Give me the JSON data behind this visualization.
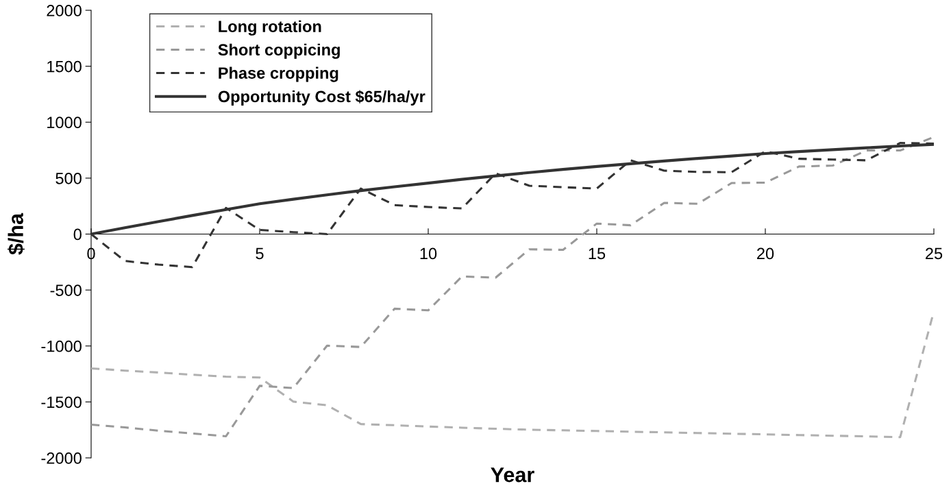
{
  "chart_data": {
    "type": "line",
    "xlabel": "Year",
    "ylabel": "$/ha",
    "x": [
      0,
      1,
      2,
      3,
      4,
      5,
      6,
      7,
      8,
      9,
      10,
      11,
      12,
      13,
      14,
      15,
      16,
      17,
      18,
      19,
      20,
      21,
      22,
      23,
      24,
      25
    ],
    "xlim": [
      0,
      25
    ],
    "xticks": [
      0,
      5,
      10,
      15,
      20,
      25
    ],
    "ylim": [
      -2000,
      2000
    ],
    "yticks": [
      -2000,
      -1500,
      -1000,
      -500,
      0,
      500,
      1000,
      1500,
      2000
    ],
    "grid": false,
    "legend": "top left",
    "marker": "none",
    "series": [
      {
        "name": "Long rotation",
        "color": "#b0b0b0",
        "line_style": "dashed",
        "values": [
          -1200,
          -1220,
          -1237,
          -1257,
          -1274,
          -1282,
          -1497,
          -1530,
          -1698,
          -1708,
          -1720,
          -1730,
          -1740,
          -1748,
          -1754,
          -1760,
          -1766,
          -1772,
          -1778,
          -1784,
          -1790,
          -1796,
          -1802,
          -1808,
          -1815,
          -690
        ]
      },
      {
        "name": "Short coppicing",
        "color": "#999999",
        "line_style": "dashed",
        "values": [
          -1703,
          -1728,
          -1757,
          -1782,
          -1807,
          -1356,
          -1376,
          -997,
          -1009,
          -667,
          -682,
          -379,
          -389,
          -136,
          -141,
          94,
          79,
          279,
          271,
          456,
          460,
          604,
          612,
          747,
          747,
          868
        ]
      },
      {
        "name": "Phase cropping",
        "color": "#333333",
        "line_style": "dashed",
        "values": [
          0,
          -240,
          -273,
          -295,
          234,
          37,
          17,
          0,
          407,
          259,
          242,
          229,
          543,
          432,
          419,
          407,
          659,
          567,
          555,
          553,
          740,
          673,
          666,
          659,
          814,
          809
        ]
      },
      {
        "name": "Opportunity Cost $65/ha/yr",
        "color": "#333333",
        "line_style": "solid",
        "values": [
          0,
          57,
          112,
          166,
          219,
          271,
          312,
          351,
          388,
          423,
          456,
          489,
          520,
          550,
          578,
          604,
          629,
          653,
          676,
          698,
          720,
          737,
          754,
          771,
          787,
          802
        ]
      }
    ]
  }
}
